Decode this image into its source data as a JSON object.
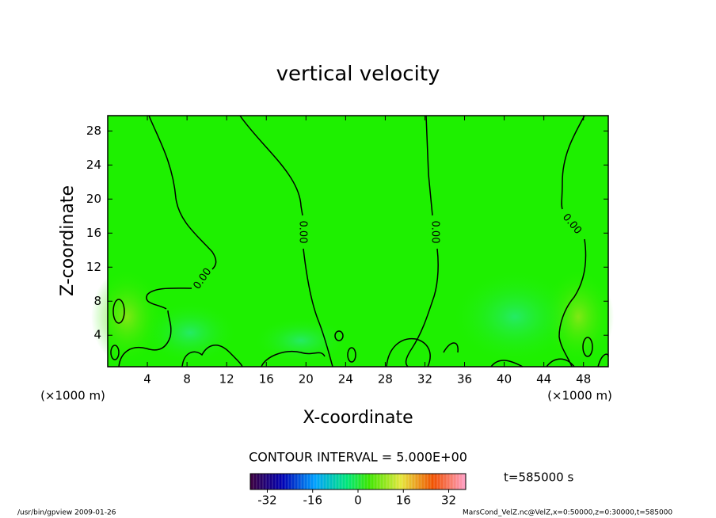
{
  "chart_data": {
    "type": "contour",
    "title": "vertical velocity",
    "xlabel": "X-coordinate",
    "ylabel": "Z-coordinate",
    "x_unit": "(×1000 m)",
    "xlim": [
      0,
      50.5
    ],
    "xticks": [
      4,
      8,
      12,
      16,
      20,
      24,
      28,
      32,
      36,
      40,
      44,
      48
    ],
    "ylim": [
      0.3,
      29.8
    ],
    "yticks": [
      4,
      8,
      12,
      16,
      20,
      24,
      28
    ],
    "contour_labels": [
      "0.00",
      "0.00",
      "0.00",
      "0.00"
    ],
    "contour_interval": "CONTOUR INTERVAL = 5.000E+00",
    "time_label": "t=585000 s",
    "colorbar": {
      "lim": [
        -38,
        38
      ],
      "ticks": [
        -32,
        -16,
        0,
        16,
        32
      ]
    },
    "footer_left": "/usr/bin/gpview  2009-01-26",
    "footer_right": "MarsCond_VelZ.nc@VelZ,x=0:50000,z=0:30000,t=585000"
  }
}
